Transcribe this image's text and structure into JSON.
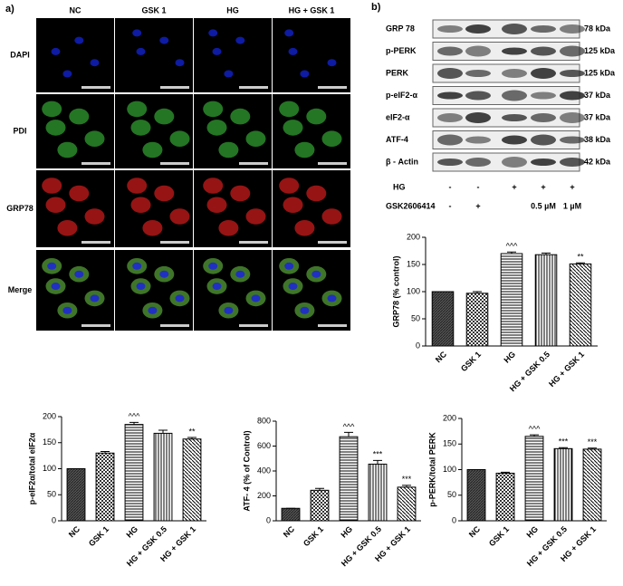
{
  "figure_a": {
    "label": "a)",
    "columns": [
      "NC",
      "GSK 1",
      "HG",
      "HG + GSK 1"
    ],
    "rows": [
      "DAPI",
      "PDI",
      "GRP78",
      "Merge"
    ]
  },
  "figure_b": {
    "label": "b)",
    "blots": [
      {
        "protein": "GRP 78",
        "size": "78 kDa"
      },
      {
        "protein": "p-PERK",
        "size": "125 kDa"
      },
      {
        "protein": "PERK",
        "size": "125 kDa"
      },
      {
        "protein": "p-eIF2-α",
        "size": "37 kDa"
      },
      {
        "protein": "eIF2-α",
        "size": "37 kDa"
      },
      {
        "protein": "ATF-4",
        "size": "38 kDa"
      },
      {
        "protein": "β - Actin",
        "size": "42 kDa"
      }
    ],
    "treatments": [
      {
        "name": "HG",
        "lanes": [
          "-",
          "-",
          "+",
          "+",
          "+"
        ]
      },
      {
        "name": "GSK2606414",
        "lanes": [
          "-",
          "+",
          null,
          "0.5 µM",
          "1 µM"
        ]
      }
    ]
  },
  "chart_data": [
    {
      "type": "bar",
      "y_label": "GRP78 (% control)",
      "categories": [
        "NC",
        "GSK 1",
        "HG",
        "HG + GSK 0.5",
        "HG + GSK 1"
      ],
      "values": [
        100,
        97,
        170,
        168,
        151
      ],
      "errors": [
        0,
        3,
        3,
        3,
        2
      ],
      "annotations": [
        null,
        null,
        "^^^",
        null,
        "**"
      ],
      "ylim": [
        0,
        200
      ],
      "yticks": [
        0,
        50,
        100,
        150,
        200
      ]
    },
    {
      "type": "bar",
      "y_label": "p-eIF2α/total eIF2α",
      "categories": [
        "NC",
        "GSK 1",
        "HG",
        "HG + GSK 0.5",
        "HG + GSK 1"
      ],
      "values": [
        100,
        130,
        185,
        168,
        157
      ],
      "errors": [
        0,
        3,
        4,
        6,
        3
      ],
      "annotations": [
        null,
        null,
        "^^^",
        null,
        "**"
      ],
      "ylim": [
        0,
        200
      ],
      "yticks": [
        0,
        50,
        100,
        150,
        200
      ]
    },
    {
      "type": "bar",
      "y_label": "ATF- 4 (% of Control)",
      "categories": [
        "NC",
        "GSK 1",
        "HG",
        "HG + GSK 0.5",
        "HG + GSK 1"
      ],
      "values": [
        100,
        245,
        675,
        455,
        270
      ],
      "errors": [
        0,
        15,
        35,
        30,
        15
      ],
      "annotations": [
        null,
        null,
        "^^^",
        "***",
        "***"
      ],
      "ylim": [
        0,
        800
      ],
      "yticks": [
        0,
        200,
        400,
        600,
        800
      ]
    },
    {
      "type": "bar",
      "y_label": "p-PERK/total PERK",
      "categories": [
        "NC",
        "GSK 1",
        "HG",
        "HG + GSK 0.5",
        "HG + GSK 1"
      ],
      "values": [
        100,
        93,
        165,
        141,
        140
      ],
      "errors": [
        0,
        2,
        3,
        2,
        2
      ],
      "annotations": [
        null,
        null,
        "^^^",
        "***",
        "***"
      ],
      "ylim": [
        0,
        200
      ],
      "yticks": [
        0,
        50,
        100,
        150,
        200
      ]
    }
  ]
}
